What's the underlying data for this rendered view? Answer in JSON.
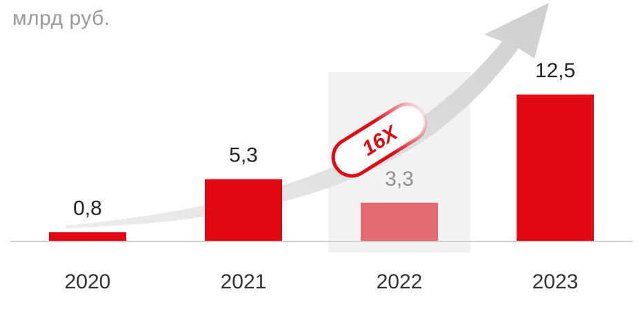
{
  "unit_label": "млрд руб.",
  "multiplier_label": "16X",
  "colors": {
    "bar": "#e30613",
    "bar_highlight": "#e46a73",
    "highlight_band": "#f2f2f2",
    "arrow": "#d9d9d9",
    "baseline": "#cfcfcf",
    "value_text": "#222222",
    "value_text_muted": "#8f8f8f",
    "year_text": "#333333",
    "badge": "#e30613"
  },
  "chart_data": {
    "type": "bar",
    "title": "",
    "xlabel": "",
    "ylabel": "млрд руб.",
    "categories": [
      "2020",
      "2021",
      "2022",
      "2023"
    ],
    "values": [
      0.8,
      5.3,
      3.3,
      12.5
    ],
    "value_labels": [
      "0,8",
      "5,3",
      "3,3",
      "12,5"
    ],
    "highlighted_category": "2022",
    "ylim": [
      0,
      13.5
    ],
    "grid": false,
    "legend": "none",
    "annotation": "16X"
  }
}
